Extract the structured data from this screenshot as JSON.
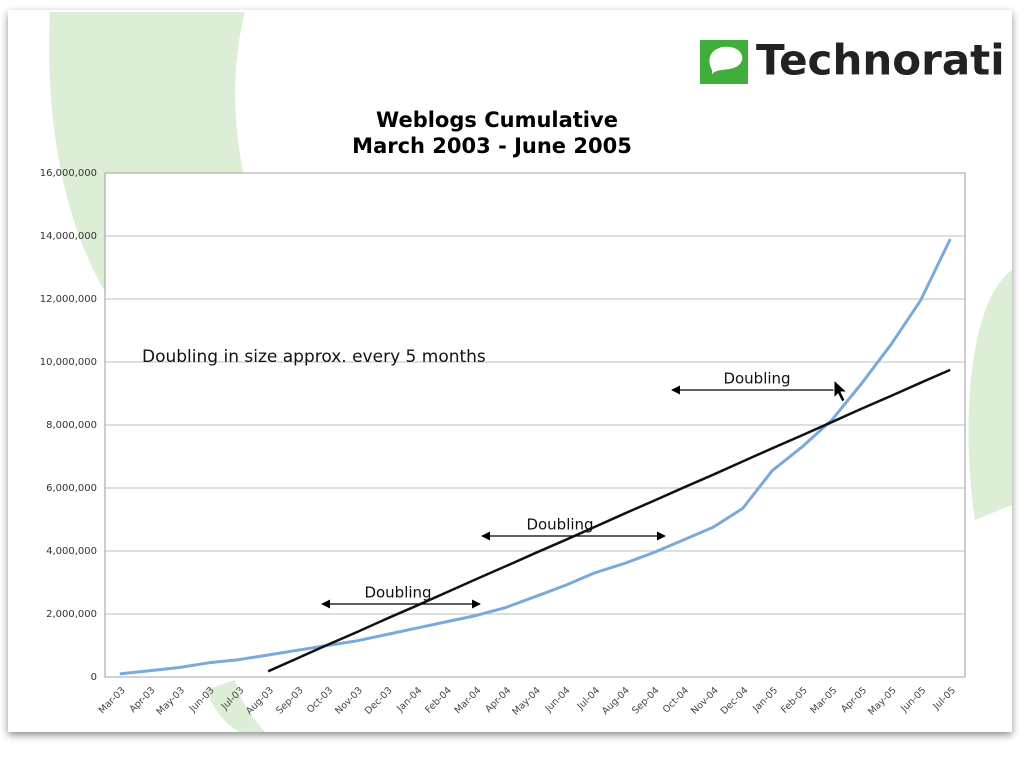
{
  "logo": "Technorati",
  "chart_data": {
    "type": "line",
    "title": "Weblogs Cumulative",
    "subtitle": "March 2003 - June 2005",
    "categories": [
      "Mar-03",
      "Apr-03",
      "May-03",
      "Jun-03",
      "Jul-03",
      "Aug-03",
      "Sep-03",
      "Oct-03",
      "Nov-03",
      "Dec-03",
      "Jan-04",
      "Feb-04",
      "Mar-04",
      "Apr-04",
      "May-04",
      "Jun-04",
      "Jul-04",
      "Aug-04",
      "Sep-04",
      "Oct-04",
      "Nov-04",
      "Dec-04",
      "Jan-05",
      "Feb-05",
      "Mar-05",
      "Apr-05",
      "May-05",
      "Jun-05",
      "Jul-05"
    ],
    "series": [
      {
        "color": "#7aa9dc",
        "width": 3,
        "values": [
          100000,
          200000,
          300000,
          450000,
          550000,
          700000,
          850000,
          1000000,
          1150000,
          1350000,
          1550000,
          1750000,
          1950000,
          2200000,
          2550000,
          2900000,
          3300000,
          3600000,
          3950000,
          4350000,
          4750000,
          5350000,
          6550000,
          7300000,
          8150000,
          9300000,
          10550000,
          11950000,
          13900000
        ]
      },
      {
        "color": "#111111",
        "width": 2.5,
        "values": [
          null,
          null,
          null,
          null,
          null,
          180000,
          600000,
          1020000,
          1430000,
          1850000,
          2260000,
          2680000,
          3100000,
          3510000,
          3930000,
          4340000,
          4760000,
          5180000,
          5590000,
          6010000,
          6420000,
          6840000,
          7260000,
          7670000,
          8090000,
          8510000,
          8920000,
          9340000,
          9750000
        ]
      }
    ],
    "ylim": [
      0,
      16000000
    ],
    "yticks": [
      0,
      {
        "value": 2000000,
        "label": "2,000,000"
      },
      {
        "value": 4000000,
        "label": "4,000,000"
      },
      {
        "value": 6000000,
        "label": "6,000,000"
      },
      {
        "value": 8000000,
        "label": "8,000,000"
      },
      {
        "value": 10000000,
        "label": "10,000,000"
      },
      {
        "value": 12000000,
        "label": "12,000,000"
      },
      {
        "value": 14000000,
        "label": "14,000,000"
      },
      {
        "value": 16000000,
        "label": "16,000,000"
      }
    ],
    "grid": true,
    "annotations": [
      "Doubling in size approx. every 5 months",
      "Doubling",
      "Doubling",
      "Doubling"
    ]
  }
}
